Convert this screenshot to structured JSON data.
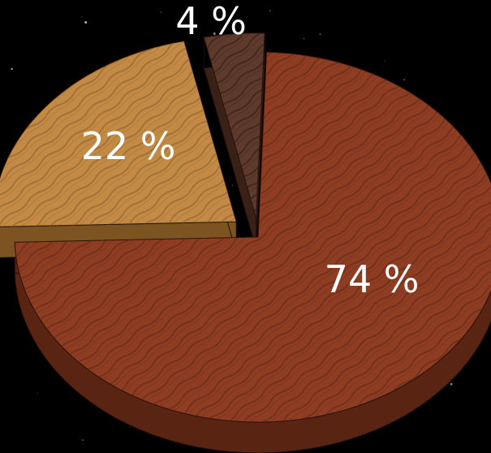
{
  "chart_data": {
    "type": "pie",
    "title": "",
    "slices": [
      {
        "label": "74 %",
        "value": 74,
        "color": "#8e3d22",
        "side_color": "#5a2412",
        "grain_color": "#5e2614"
      },
      {
        "label": "22 %",
        "value": 22,
        "color": "#c28a45",
        "side_color": "#7c5422",
        "grain_color": "#8a5d2a"
      },
      {
        "label": "4 %",
        "value": 4,
        "color": "#5d3a2b",
        "side_color": "#3a2118",
        "grain_color": "#2e1a12"
      }
    ],
    "background_color": "#000000",
    "label_color": "#ffffff",
    "style": "3d-exploded-wood-texture"
  }
}
